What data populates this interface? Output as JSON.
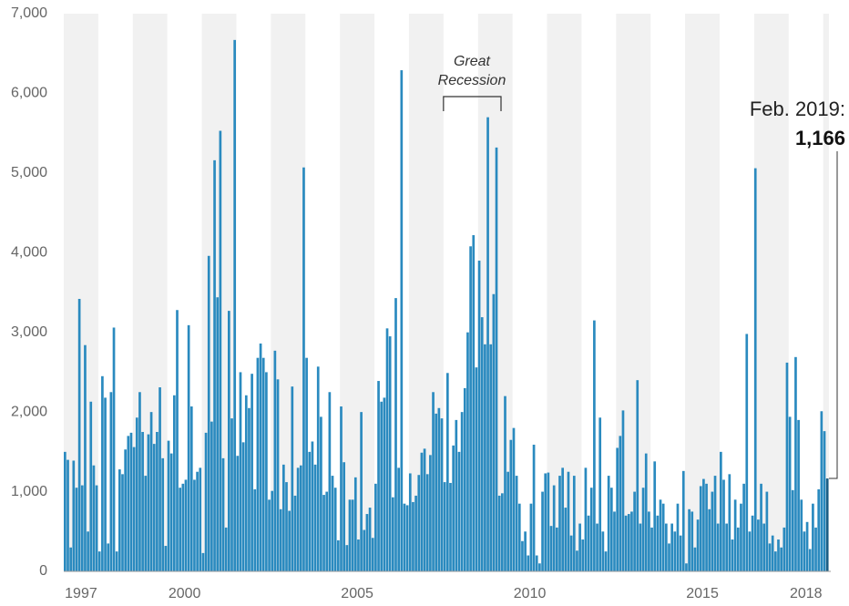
{
  "chart_data": {
    "type": "bar",
    "x": [
      "1997-01",
      "1997-02",
      "1997-03",
      "1997-04",
      "1997-05",
      "1997-06",
      "1997-07",
      "1997-08",
      "1997-09",
      "1997-10",
      "1997-11",
      "1997-12",
      "1998-01",
      "1998-02",
      "1998-03",
      "1998-04",
      "1998-05",
      "1998-06",
      "1998-07",
      "1998-08",
      "1998-09",
      "1998-10",
      "1998-11",
      "1998-12",
      "1999-01",
      "1999-02",
      "1999-03",
      "1999-04",
      "1999-05",
      "1999-06",
      "1999-07",
      "1999-08",
      "1999-09",
      "1999-10",
      "1999-11",
      "1999-12",
      "2000-01",
      "2000-02",
      "2000-03",
      "2000-04",
      "2000-05",
      "2000-06",
      "2000-07",
      "2000-08",
      "2000-09",
      "2000-10",
      "2000-11",
      "2000-12",
      "2001-01",
      "2001-02",
      "2001-03",
      "2001-04",
      "2001-05",
      "2001-06",
      "2001-07",
      "2001-08",
      "2001-09",
      "2001-10",
      "2001-11",
      "2001-12",
      "2002-01",
      "2002-02",
      "2002-03",
      "2002-04",
      "2002-05",
      "2002-06",
      "2002-07",
      "2002-08",
      "2002-09",
      "2002-10",
      "2002-11",
      "2002-12",
      "2003-01",
      "2003-02",
      "2003-03",
      "2003-04",
      "2003-05",
      "2003-06",
      "2003-07",
      "2003-08",
      "2003-09",
      "2003-10",
      "2003-11",
      "2003-12",
      "2004-01",
      "2004-02",
      "2004-03",
      "2004-04",
      "2004-05",
      "2004-06",
      "2004-07",
      "2004-08",
      "2004-09",
      "2004-10",
      "2004-11",
      "2004-12",
      "2005-01",
      "2005-02",
      "2005-03",
      "2005-04",
      "2005-05",
      "2005-06",
      "2005-07",
      "2005-08",
      "2005-09",
      "2005-10",
      "2005-11",
      "2005-12",
      "2006-01",
      "2006-02",
      "2006-03",
      "2006-04",
      "2006-05",
      "2006-06",
      "2006-07",
      "2006-08",
      "2006-09",
      "2006-10",
      "2006-11",
      "2006-12",
      "2007-01",
      "2007-02",
      "2007-03",
      "2007-04",
      "2007-05",
      "2007-06",
      "2007-07",
      "2007-08",
      "2007-09",
      "2007-10",
      "2007-11",
      "2007-12",
      "2008-01",
      "2008-02",
      "2008-03",
      "2008-04",
      "2008-05",
      "2008-06",
      "2008-07",
      "2008-08",
      "2008-09",
      "2008-10",
      "2008-11",
      "2008-12",
      "2009-01",
      "2009-02",
      "2009-03",
      "2009-04",
      "2009-05",
      "2009-06",
      "2009-07",
      "2009-08",
      "2009-09",
      "2009-10",
      "2009-11",
      "2009-12",
      "2010-01",
      "2010-02",
      "2010-03",
      "2010-04",
      "2010-05",
      "2010-06",
      "2010-07",
      "2010-08",
      "2010-09",
      "2010-10",
      "2010-11",
      "2010-12",
      "2011-01",
      "2011-02",
      "2011-03",
      "2011-04",
      "2011-05",
      "2011-06",
      "2011-07",
      "2011-08",
      "2011-09",
      "2011-10",
      "2011-11",
      "2011-12",
      "2012-01",
      "2012-02",
      "2012-03",
      "2012-04",
      "2012-05",
      "2012-06",
      "2012-07",
      "2012-08",
      "2012-09",
      "2012-10",
      "2012-11",
      "2012-12",
      "2013-01",
      "2013-02",
      "2013-03",
      "2013-04",
      "2013-05",
      "2013-06",
      "2013-07",
      "2013-08",
      "2013-09",
      "2013-10",
      "2013-11",
      "2013-12",
      "2014-01",
      "2014-02",
      "2014-03",
      "2014-04",
      "2014-05",
      "2014-06",
      "2014-07",
      "2014-08",
      "2014-09",
      "2014-10",
      "2014-11",
      "2014-12",
      "2015-01",
      "2015-02",
      "2015-03",
      "2015-04",
      "2015-05",
      "2015-06",
      "2015-07",
      "2015-08",
      "2015-09",
      "2015-10",
      "2015-11",
      "2015-12",
      "2016-01",
      "2016-02",
      "2016-03",
      "2016-04",
      "2016-05",
      "2016-06",
      "2016-07",
      "2016-08",
      "2016-09",
      "2016-10",
      "2016-11",
      "2016-12",
      "2017-01",
      "2017-02",
      "2017-03",
      "2017-04",
      "2017-05",
      "2017-06",
      "2017-07",
      "2017-08",
      "2017-09",
      "2017-10",
      "2017-11",
      "2017-12",
      "2018-01",
      "2018-02",
      "2018-03",
      "2018-04",
      "2018-05",
      "2018-06",
      "2018-07",
      "2018-08",
      "2018-09",
      "2018-10",
      "2018-11",
      "2018-12",
      "2019-01",
      "2019-02"
    ],
    "values": [
      1500,
      1400,
      300,
      1390,
      1050,
      3420,
      1080,
      2840,
      500,
      2130,
      1330,
      1080,
      250,
      2450,
      2180,
      350,
      2250,
      3060,
      250,
      1280,
      1220,
      1530,
      1700,
      1740,
      1560,
      1930,
      2250,
      1750,
      1200,
      1720,
      2000,
      1600,
      1750,
      2310,
      1420,
      320,
      1640,
      1480,
      2210,
      3280,
      1050,
      1100,
      1150,
      3090,
      2070,
      1150,
      1250,
      1300,
      230,
      1740,
      3960,
      1880,
      5160,
      3440,
      5530,
      1420,
      550,
      3270,
      1920,
      6670,
      1450,
      2500,
      1620,
      2210,
      2050,
      2480,
      1030,
      2680,
      2860,
      2680,
      2500,
      900,
      1010,
      2770,
      2410,
      780,
      1340,
      1120,
      760,
      2320,
      950,
      1300,
      1330,
      5070,
      2680,
      1500,
      1630,
      1340,
      2570,
      1940,
      960,
      1000,
      2250,
      1200,
      1050,
      390,
      2070,
      1370,
      330,
      900,
      900,
      1180,
      400,
      2000,
      520,
      720,
      800,
      420,
      1100,
      2390,
      2130,
      2180,
      3050,
      2950,
      930,
      3430,
      1300,
      6290,
      850,
      830,
      1230,
      870,
      950,
      1210,
      1490,
      1540,
      1220,
      1460,
      2250,
      1980,
      2050,
      1920,
      1120,
      2490,
      1110,
      1580,
      1900,
      1500,
      2000,
      2300,
      3000,
      4080,
      4220,
      2560,
      3900,
      3190,
      2850,
      5700,
      2850,
      3480,
      5320,
      950,
      980,
      2200,
      1250,
      1650,
      1800,
      1200,
      850,
      380,
      500,
      200,
      850,
      1590,
      200,
      100,
      1000,
      1230,
      1240,
      570,
      1080,
      550,
      1200,
      1300,
      800,
      1250,
      450,
      1200,
      260,
      600,
      400,
      1300,
      700,
      1050,
      3150,
      600,
      1930,
      500,
      250,
      1200,
      1050,
      750,
      1550,
      1700,
      2020,
      700,
      720,
      750,
      1000,
      2400,
      600,
      1050,
      1480,
      750,
      550,
      1380,
      700,
      900,
      850,
      600,
      350,
      600,
      500,
      850,
      450,
      1260,
      100,
      780,
      750,
      300,
      650,
      1070,
      1160,
      1100,
      780,
      1000,
      1200,
      600,
      1500,
      1150,
      600,
      1220,
      400,
      900,
      550,
      850,
      1100,
      2980,
      500,
      700,
      5060,
      650,
      1100,
      600,
      1000,
      350,
      450,
      250,
      400,
      300,
      550,
      2620,
      1940,
      1020,
      2690,
      1900,
      900,
      500,
      620,
      280,
      850,
      550,
      1030,
      2010,
      1760,
      1166
    ],
    "color": "#2a8abf",
    "highlight_color": "#1b5e85",
    "ylim": [
      0,
      7000
    ],
    "yticks": [
      0,
      {
        "value": 1000,
        "label": "1,000"
      },
      {
        "value": 2000,
        "label": "2,000"
      },
      {
        "value": 3000,
        "label": "3,000"
      },
      {
        "value": 4000,
        "label": "4,000"
      },
      {
        "value": 5000,
        "label": "5,000"
      },
      {
        "value": 6000,
        "label": "6,000"
      },
      {
        "value": 7000,
        "label": "7,000"
      }
    ],
    "xticks": [
      1997,
      2000,
      2005,
      2010,
      2015,
      2018
    ],
    "annotation": {
      "line1": "Great",
      "line2": "Recession",
      "start": "2008-01",
      "end": "2009-08"
    },
    "callout": {
      "text": "Feb. 2019:",
      "value_label": "1,166"
    }
  }
}
